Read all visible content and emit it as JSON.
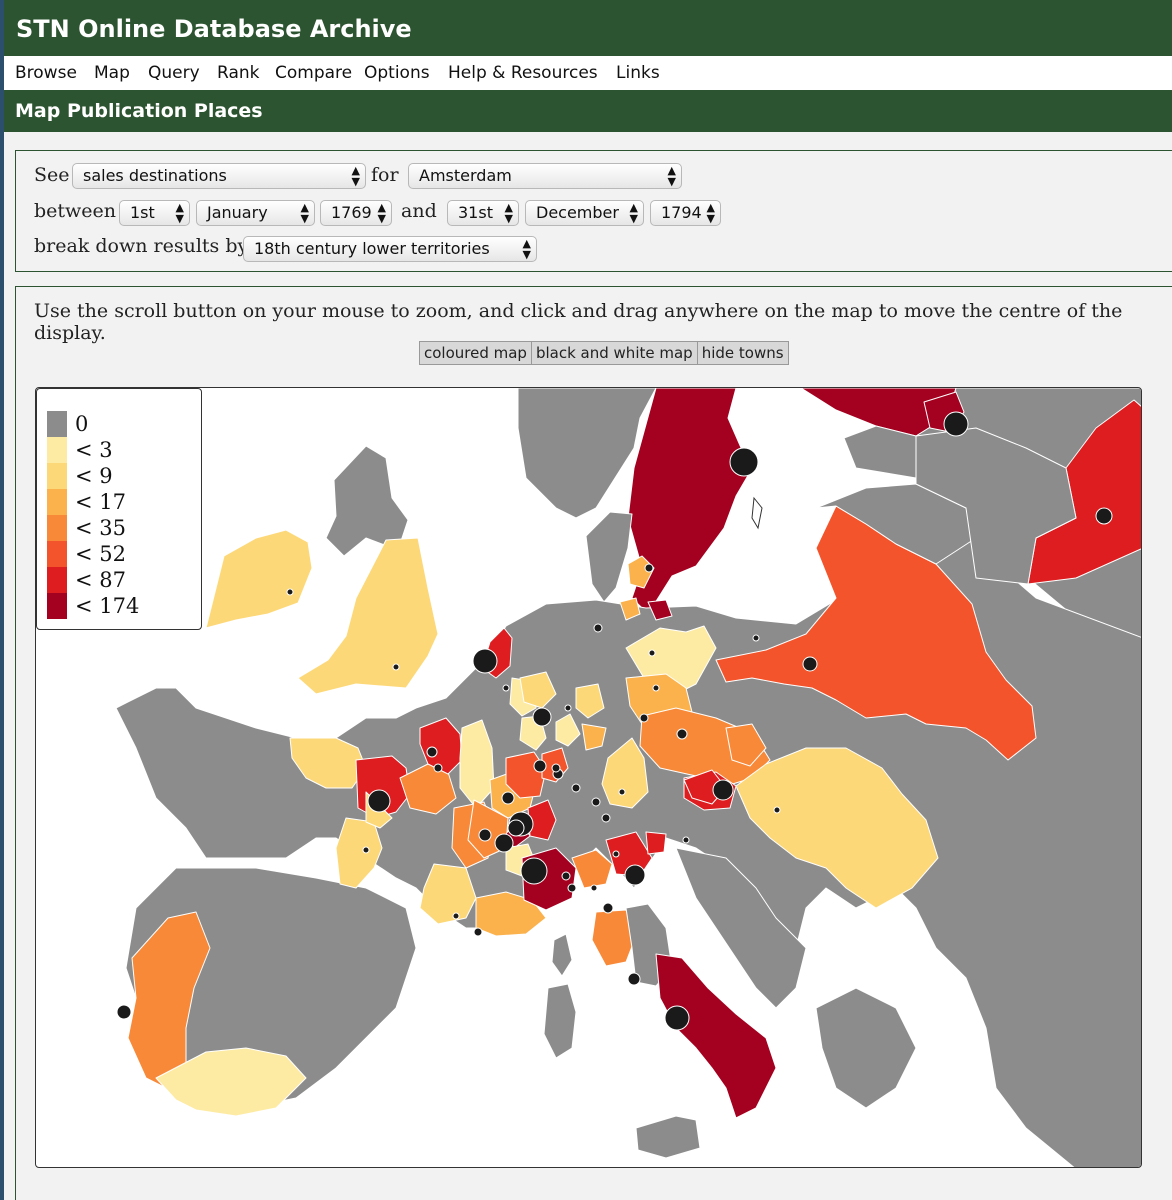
{
  "app": {
    "title": "STN Online Database Archive"
  },
  "menu": {
    "items": [
      "Browse",
      "Map",
      "Query",
      "Rank",
      "Compare",
      "Options",
      "Help & Resources",
      "Links"
    ]
  },
  "page": {
    "title": "Map Publication Places"
  },
  "form": {
    "see_label": "See",
    "see_value": "sales destinations",
    "for_label": "for",
    "for_value": "Amsterdam",
    "between_label": "between",
    "start_day": "1st",
    "start_month": "January",
    "start_year": "1769",
    "and_label": "and",
    "end_day": "31st",
    "end_month": "December",
    "end_year": "1794",
    "breakdown_label": "break down results by",
    "breakdown_value": "18th century lower territories"
  },
  "map": {
    "instructions": "Use the scroll button on your mouse to zoom, and click and drag anywhere on the map to move the centre of the display.",
    "buttons": [
      "coloured map",
      "black and white map",
      "hide towns"
    ],
    "legend": [
      {
        "label": "0",
        "color": "#8c8c8c"
      },
      {
        "label": "< 3",
        "color": "#fdeba3"
      },
      {
        "label": "< 9",
        "color": "#fdd878"
      },
      {
        "label": "< 17",
        "color": "#fbb14c"
      },
      {
        "label": "< 35",
        "color": "#f88938"
      },
      {
        "label": "< 52",
        "color": "#f4542b"
      },
      {
        "label": "< 87",
        "color": "#dd1d1f"
      },
      {
        "label": "< 174",
        "color": "#a4001f"
      }
    ],
    "land_color": "#8c8c8c",
    "sea_color": "#ffffff",
    "town_color": "#1a1a1a"
  }
}
